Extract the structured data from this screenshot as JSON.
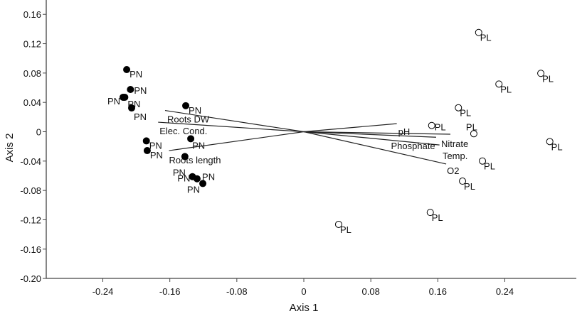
{
  "chart_data": {
    "type": "scatter",
    "title": "",
    "xlabel": "Axis 1",
    "ylabel": "Axis 2",
    "xlim": [
      -0.308,
      0.325
    ],
    "ylim": [
      -0.2,
      0.18
    ],
    "xticks": [
      "-0.24",
      "-0.16",
      "-0.08",
      "0",
      "0.08",
      "0.16",
      "0.24"
    ],
    "xtick_values": [
      -0.24,
      -0.16,
      -0.08,
      0,
      0.08,
      0.16,
      0.24
    ],
    "yticks": [
      "0.16",
      "0.12",
      "0.08",
      "0.04",
      "0",
      "-0.04",
      "-0.08",
      "-0.12",
      "-0.16",
      "-0.20"
    ],
    "ytick_values": [
      0.16,
      0.12,
      0.08,
      0.04,
      0,
      -0.04,
      -0.08,
      -0.12,
      -0.16,
      -0.2
    ],
    "grid": false,
    "series": [
      {
        "name": "PN",
        "marker": "filled-circle",
        "color": "#000000",
        "points": [
          [
            -0.2115,
            0.0847
          ],
          [
            -0.207,
            0.0576
          ],
          [
            -0.2158,
            0.047
          ],
          [
            -0.2138,
            0.047
          ],
          [
            -0.2056,
            0.0324
          ],
          [
            -0.141,
            0.0355
          ],
          [
            -0.135,
            -0.0095
          ],
          [
            -0.188,
            -0.0125
          ],
          [
            -0.187,
            -0.0257
          ],
          [
            -0.142,
            -0.0338
          ],
          [
            -0.133,
            -0.0612
          ],
          [
            -0.1275,
            -0.0641
          ],
          [
            -0.1206,
            -0.0706
          ]
        ]
      },
      {
        "name": "PL",
        "marker": "open-circle",
        "color": "#000000",
        "points": [
          [
            0.2088,
            0.1353
          ],
          [
            0.283,
            0.0796
          ],
          [
            0.233,
            0.065
          ],
          [
            0.1846,
            0.0327
          ],
          [
            0.1527,
            0.0085
          ],
          [
            0.203,
            -0.0027
          ],
          [
            0.2937,
            -0.0134
          ],
          [
            0.2133,
            -0.0399
          ],
          [
            0.1895,
            -0.0673
          ],
          [
            0.151,
            -0.11
          ],
          [
            0.0416,
            -0.1263
          ]
        ]
      }
    ],
    "vectors": [
      {
        "name": "Roots DW",
        "x": -0.1657,
        "y": 0.029
      },
      {
        "name": "Elec. Cond.",
        "x": -0.174,
        "y": 0.013
      },
      {
        "name": "Roots length",
        "x": -0.161,
        "y": -0.0257
      },
      {
        "name": "pH",
        "x": 0.111,
        "y": 0.011
      },
      {
        "name": "Nitrate",
        "x": 0.175,
        "y": -0.0034
      },
      {
        "name": "Temp.",
        "x": 0.158,
        "y": -0.0075
      },
      {
        "name": "Phosphate",
        "x": 0.162,
        "y": -0.018
      },
      {
        "name": "O2",
        "x": 0.17,
        "y": -0.044
      }
    ]
  }
}
